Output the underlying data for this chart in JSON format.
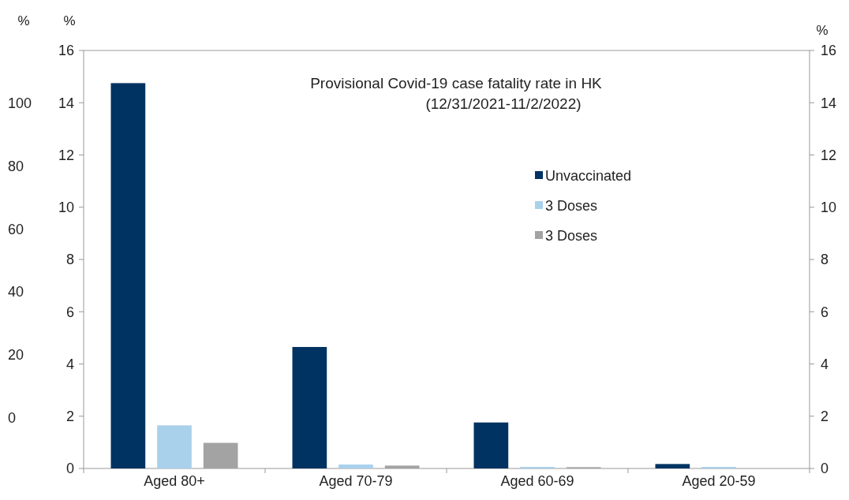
{
  "chart_data": {
    "type": "bar",
    "title": "Provisional  Covid-19  case fatality rate in HK",
    "subtitle": "(12/31/2021-11/2/2022)",
    "categories": [
      "Aged 80+",
      "Aged 70-79",
      "Aged 60-69",
      "Aged 20-59"
    ],
    "series": [
      {
        "name": "Unvaccinated",
        "color": "#003361",
        "values": [
          14.75,
          4.65,
          1.76,
          0.17
        ]
      },
      {
        "name": "3 Doses",
        "color": "#a9d1ec",
        "values": [
          1.65,
          0.15,
          0.06,
          0.06
        ]
      },
      {
        "name": "3 Doses",
        "color": "#a3a3a3",
        "values": [
          0.98,
          0.11,
          0.05,
          null
        ]
      }
    ],
    "ylim": [
      0,
      16
    ],
    "yticks": [
      0,
      2,
      4,
      6,
      8,
      10,
      12,
      14,
      16
    ],
    "ylabel": "%",
    "y2lim": [
      0,
      16
    ],
    "y2ticks": [
      0,
      2,
      4,
      6,
      8,
      10,
      12,
      14,
      16
    ],
    "y2label": "%",
    "y3lim": [
      -16.2,
      116.8
    ],
    "y3ticks": [
      0,
      20,
      40,
      60,
      80,
      100
    ],
    "y3label": "%",
    "legend": "top right",
    "grid": false
  }
}
